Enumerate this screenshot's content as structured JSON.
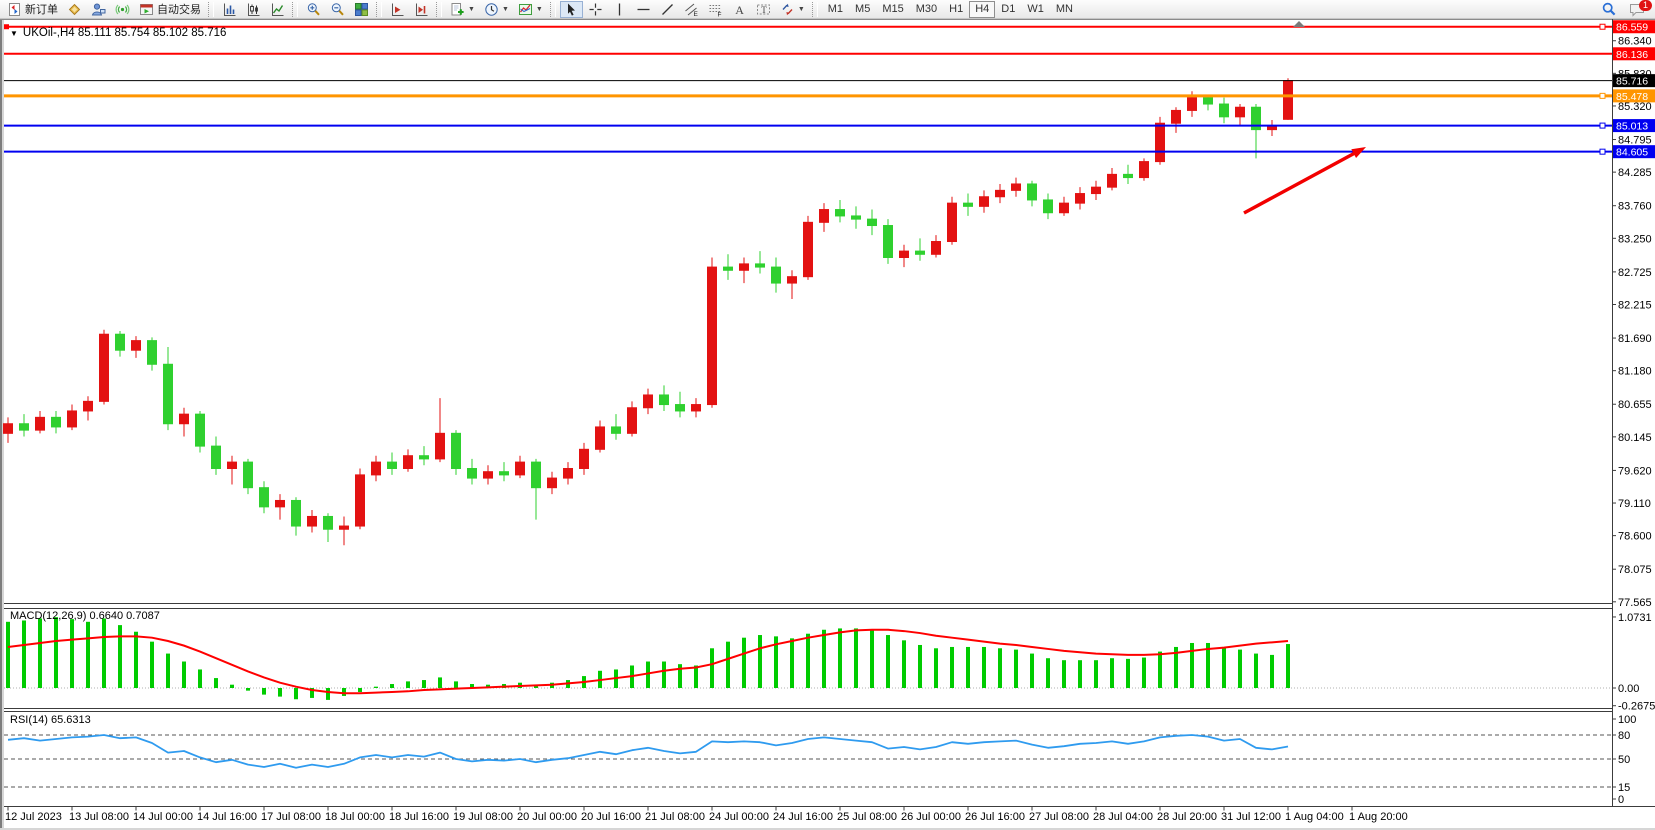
{
  "toolbar": {
    "new_order_label": "新订单",
    "autotrade_label": "自动交易",
    "text_tool_glyph": "A",
    "label_tool_glyph": "T",
    "channel_sub": "E",
    "fibo_sub": "F",
    "timeframes": [
      "M1",
      "M5",
      "M15",
      "M30",
      "H1",
      "H4",
      "D1",
      "W1",
      "MN"
    ],
    "active_timeframe": "H4",
    "notification_badge": "1",
    "icons": [
      "new-order-icon",
      "market-icon",
      "accounts-icon",
      "signals-icon",
      "autotrade-icon",
      "bar-chart-icon",
      "candle-chart-icon",
      "line-chart-icon",
      "zoom-in-icon",
      "zoom-out-icon",
      "tile-windows-icon",
      "shift-chart-icon",
      "shift-end-icon",
      "new-chart-icon",
      "periods-icon",
      "indicators-icon",
      "cursor-icon",
      "crosshair-icon",
      "vertical-line-icon",
      "horizontal-line-icon",
      "trendline-icon",
      "equidistant-channel-icon",
      "fibonacci-icon",
      "text-icon",
      "text-label-icon",
      "arrows-icon",
      "search-icon",
      "chat-icon"
    ]
  },
  "chart": {
    "title": "UKOil-,H4  85.111 85.754 85.102 85.716",
    "macd_label": "MACD(12,26,9) 0.6640 0.7087",
    "rsi_label": "RSI(14) 65.6313"
  },
  "chart_data": {
    "type": "candlestick+indicators",
    "symbol": "UKOil-",
    "timeframe": "H4",
    "ohlc_display": {
      "open": "85.111",
      "high": "85.754",
      "low": "85.102",
      "close": "85.716"
    },
    "colors": {
      "bull": "#e31212",
      "bear": "#2fd02f",
      "macd_hist": "#00cc00",
      "macd_signal": "#ff0000",
      "rsi_line": "#2f9bef",
      "axis_line": "#3c3c3c",
      "badge_text": "#ffffff"
    },
    "price_axis_ticks": [
      "86.340",
      "85.830",
      "85.320",
      "84.795",
      "84.285",
      "83.760",
      "83.250",
      "82.725",
      "82.215",
      "81.690",
      "81.180",
      "80.655",
      "80.145",
      "79.620",
      "79.110",
      "78.600",
      "78.075",
      "77.565"
    ],
    "price_lines": [
      {
        "price": 86.559,
        "label": "86.559",
        "color": "#ff0000",
        "width": 2,
        "left_anchor": true,
        "right_anchor": true
      },
      {
        "price": 86.136,
        "label": "86.136",
        "color": "#ff0000",
        "width": 2
      },
      {
        "price": 85.716,
        "label": "85.716",
        "color": "#000000",
        "width": 1,
        "current": true
      },
      {
        "price": 85.478,
        "label": "85.478",
        "color": "#ff9500",
        "width": 3,
        "right_anchor": true
      },
      {
        "price": 85.013,
        "label": "85.013",
        "color": "#0000f0",
        "width": 2,
        "right_anchor": true
      },
      {
        "price": 84.605,
        "label": "84.605",
        "color": "#0000f0",
        "width": 2,
        "right_anchor": true
      }
    ],
    "candles": [
      [
        80.2,
        80.45,
        80.05,
        80.35
      ],
      [
        80.35,
        80.5,
        80.15,
        80.25
      ],
      [
        80.25,
        80.55,
        80.2,
        80.45
      ],
      [
        80.45,
        80.55,
        80.2,
        80.3
      ],
      [
        80.3,
        80.65,
        80.25,
        80.55
      ],
      [
        80.55,
        80.78,
        80.4,
        80.7
      ],
      [
        80.7,
        81.82,
        80.65,
        81.75
      ],
      [
        81.75,
        81.8,
        81.4,
        81.5
      ],
      [
        81.5,
        81.72,
        81.38,
        81.65
      ],
      [
        81.65,
        81.7,
        81.18,
        81.28
      ],
      [
        81.28,
        81.55,
        80.25,
        80.35
      ],
      [
        80.35,
        80.6,
        80.15,
        80.5
      ],
      [
        80.5,
        80.55,
        79.9,
        80.0
      ],
      [
        80.0,
        80.15,
        79.55,
        79.65
      ],
      [
        79.65,
        79.85,
        79.4,
        79.75
      ],
      [
        79.75,
        79.8,
        79.25,
        79.35
      ],
      [
        79.35,
        79.45,
        78.95,
        79.05
      ],
      [
        79.05,
        79.25,
        78.85,
        79.15
      ],
      [
        79.15,
        79.2,
        78.6,
        78.75
      ],
      [
        78.75,
        79.0,
        78.65,
        78.9
      ],
      [
        78.9,
        78.95,
        78.5,
        78.7
      ],
      [
        78.7,
        78.9,
        78.45,
        78.75
      ],
      [
        78.75,
        79.65,
        78.7,
        79.55
      ],
      [
        79.55,
        79.85,
        79.45,
        79.75
      ],
      [
        79.75,
        79.9,
        79.55,
        79.65
      ],
      [
        79.65,
        79.95,
        79.6,
        79.85
      ],
      [
        79.85,
        80.0,
        79.7,
        79.8
      ],
      [
        79.8,
        80.75,
        79.75,
        80.2
      ],
      [
        80.2,
        80.25,
        79.55,
        79.65
      ],
      [
        79.65,
        79.8,
        79.4,
        79.5
      ],
      [
        79.5,
        79.7,
        79.4,
        79.6
      ],
      [
        79.6,
        79.75,
        79.45,
        79.55
      ],
      [
        79.55,
        79.85,
        79.5,
        79.75
      ],
      [
        79.75,
        79.8,
        78.85,
        79.35
      ],
      [
        79.35,
        79.6,
        79.25,
        79.5
      ],
      [
        79.5,
        79.75,
        79.4,
        79.65
      ],
      [
        79.65,
        80.05,
        79.55,
        79.95
      ],
      [
        79.95,
        80.4,
        79.9,
        80.3
      ],
      [
        80.3,
        80.5,
        80.1,
        80.2
      ],
      [
        80.2,
        80.7,
        80.15,
        80.6
      ],
      [
        80.6,
        80.9,
        80.5,
        80.8
      ],
      [
        80.8,
        80.95,
        80.55,
        80.65
      ],
      [
        80.65,
        80.85,
        80.45,
        80.55
      ],
      [
        80.55,
        80.75,
        80.45,
        80.65
      ],
      [
        80.65,
        82.95,
        80.6,
        82.8
      ],
      [
        82.8,
        83.0,
        82.6,
        82.75
      ],
      [
        82.75,
        82.95,
        82.55,
        82.85
      ],
      [
        82.85,
        83.05,
        82.7,
        82.8
      ],
      [
        82.8,
        82.95,
        82.4,
        82.55
      ],
      [
        82.55,
        82.75,
        82.3,
        82.65
      ],
      [
        82.65,
        83.6,
        82.6,
        83.5
      ],
      [
        83.5,
        83.8,
        83.35,
        83.7
      ],
      [
        83.7,
        83.85,
        83.5,
        83.6
      ],
      [
        83.6,
        83.75,
        83.4,
        83.55
      ],
      [
        83.55,
        83.7,
        83.3,
        83.45
      ],
      [
        83.45,
        83.55,
        82.85,
        82.95
      ],
      [
        82.95,
        83.15,
        82.8,
        83.05
      ],
      [
        83.05,
        83.25,
        82.9,
        83.0
      ],
      [
        83.0,
        83.3,
        82.95,
        83.2
      ],
      [
        83.2,
        83.9,
        83.15,
        83.8
      ],
      [
        83.8,
        83.95,
        83.6,
        83.75
      ],
      [
        83.75,
        84.0,
        83.65,
        83.9
      ],
      [
        83.9,
        84.1,
        83.8,
        84.0
      ],
      [
        84.0,
        84.2,
        83.9,
        84.1
      ],
      [
        84.1,
        84.15,
        83.75,
        83.85
      ],
      [
        83.85,
        83.95,
        83.55,
        83.65
      ],
      [
        83.65,
        83.9,
        83.6,
        83.8
      ],
      [
        83.8,
        84.05,
        83.7,
        83.95
      ],
      [
        83.95,
        84.15,
        83.85,
        84.05
      ],
      [
        84.05,
        84.35,
        84.0,
        84.25
      ],
      [
        84.25,
        84.4,
        84.1,
        84.2
      ],
      [
        84.2,
        84.5,
        84.15,
        84.45
      ],
      [
        84.45,
        85.15,
        84.4,
        85.05
      ],
      [
        85.05,
        85.3,
        84.9,
        85.25
      ],
      [
        85.25,
        85.55,
        85.15,
        85.45
      ],
      [
        85.45,
        85.5,
        85.25,
        85.35
      ],
      [
        85.35,
        85.45,
        85.05,
        85.15
      ],
      [
        85.15,
        85.35,
        85.0,
        85.3
      ],
      [
        85.3,
        85.35,
        84.5,
        84.95
      ],
      [
        84.95,
        85.1,
        84.85,
        85.0
      ],
      [
        85.111,
        85.754,
        85.102,
        85.716
      ]
    ],
    "date_labels": [
      "12 Jul 2023",
      "13 Jul 08:00",
      "14 Jul 00:00",
      "14 Jul 16:00",
      "17 Jul 08:00",
      "18 Jul 00:00",
      "18 Jul 16:00",
      "19 Jul 08:00",
      "20 Jul 00:00",
      "20 Jul 16:00",
      "21 Jul 08:00",
      "24 Jul 00:00",
      "24 Jul 16:00",
      "25 Jul 08:00",
      "26 Jul 00:00",
      "26 Jul 16:00",
      "27 Jul 08:00",
      "28 Jul 04:00",
      "28 Jul 20:00",
      "31 Jul 12:00",
      "1 Aug 04:00",
      "1 Aug 20:00"
    ],
    "label_every_n_bars": 4,
    "macd": {
      "label": "MACD(12,26,9) 0.6640 0.7087",
      "axis_labels": [
        {
          "v": 1.0731,
          "label": "1.0731"
        },
        {
          "v": 0,
          "label": "0.00"
        },
        {
          "v": -0.2675,
          "label": "-0.2675"
        }
      ],
      "hist": [
        1.0,
        1.02,
        1.05,
        1.07,
        1.04,
        1.0,
        1.05,
        0.95,
        0.85,
        0.7,
        0.52,
        0.4,
        0.28,
        0.15,
        0.05,
        -0.04,
        -0.1,
        -0.13,
        -0.17,
        -0.15,
        -0.18,
        -0.12,
        -0.06,
        0.02,
        0.06,
        0.1,
        0.12,
        0.16,
        0.1,
        0.06,
        0.05,
        0.06,
        0.08,
        0.05,
        0.08,
        0.12,
        0.18,
        0.26,
        0.28,
        0.34,
        0.4,
        0.4,
        0.36,
        0.34,
        0.6,
        0.7,
        0.76,
        0.8,
        0.78,
        0.75,
        0.82,
        0.88,
        0.9,
        0.9,
        0.88,
        0.8,
        0.72,
        0.65,
        0.6,
        0.62,
        0.62,
        0.62,
        0.6,
        0.58,
        0.52,
        0.45,
        0.42,
        0.42,
        0.42,
        0.45,
        0.44,
        0.46,
        0.55,
        0.62,
        0.68,
        0.68,
        0.62,
        0.58,
        0.52,
        0.5,
        0.664
      ],
      "signal": [
        0.62,
        0.65,
        0.68,
        0.71,
        0.73,
        0.75,
        0.77,
        0.78,
        0.78,
        0.76,
        0.71,
        0.64,
        0.55,
        0.45,
        0.35,
        0.25,
        0.16,
        0.08,
        0.02,
        -0.03,
        -0.06,
        -0.08,
        -0.08,
        -0.07,
        -0.06,
        -0.05,
        -0.03,
        -0.02,
        -0.01,
        0.0,
        0.01,
        0.02,
        0.03,
        0.04,
        0.05,
        0.07,
        0.09,
        0.12,
        0.15,
        0.18,
        0.22,
        0.26,
        0.29,
        0.31,
        0.36,
        0.44,
        0.52,
        0.6,
        0.66,
        0.71,
        0.76,
        0.8,
        0.84,
        0.87,
        0.88,
        0.88,
        0.86,
        0.83,
        0.79,
        0.76,
        0.73,
        0.7,
        0.67,
        0.65,
        0.62,
        0.59,
        0.56,
        0.54,
        0.52,
        0.51,
        0.5,
        0.5,
        0.51,
        0.53,
        0.56,
        0.59,
        0.61,
        0.64,
        0.67,
        0.69,
        0.71
      ]
    },
    "rsi": {
      "label": "RSI(14) 65.6313",
      "levels": [
        {
          "v": 100,
          "label": "100"
        },
        {
          "v": 80,
          "label": "80",
          "dashed": true
        },
        {
          "v": 50,
          "label": "50",
          "dashed": true
        },
        {
          "v": 15,
          "label": "15",
          "dashed": true
        },
        {
          "v": 0,
          "label": "0"
        }
      ],
      "values": [
        74,
        76,
        73,
        75,
        77,
        78,
        80,
        76,
        77,
        70,
        58,
        60,
        52,
        46,
        49,
        43,
        40,
        44,
        39,
        43,
        40,
        44,
        52,
        55,
        52,
        55,
        53,
        58,
        50,
        47,
        49,
        48,
        50,
        46,
        49,
        51,
        55,
        59,
        56,
        61,
        64,
        60,
        57,
        59,
        72,
        71,
        72,
        71,
        67,
        70,
        75,
        77,
        75,
        73,
        71,
        63,
        65,
        62,
        65,
        71,
        69,
        71,
        72,
        73,
        68,
        64,
        66,
        69,
        70,
        72,
        69,
        72,
        77,
        79,
        80,
        78,
        73,
        75,
        64,
        62,
        65.63
      ]
    },
    "arrow": {
      "from": [
        1244,
        213
      ],
      "to": [
        1366,
        147
      ],
      "color": "#f20000"
    }
  }
}
